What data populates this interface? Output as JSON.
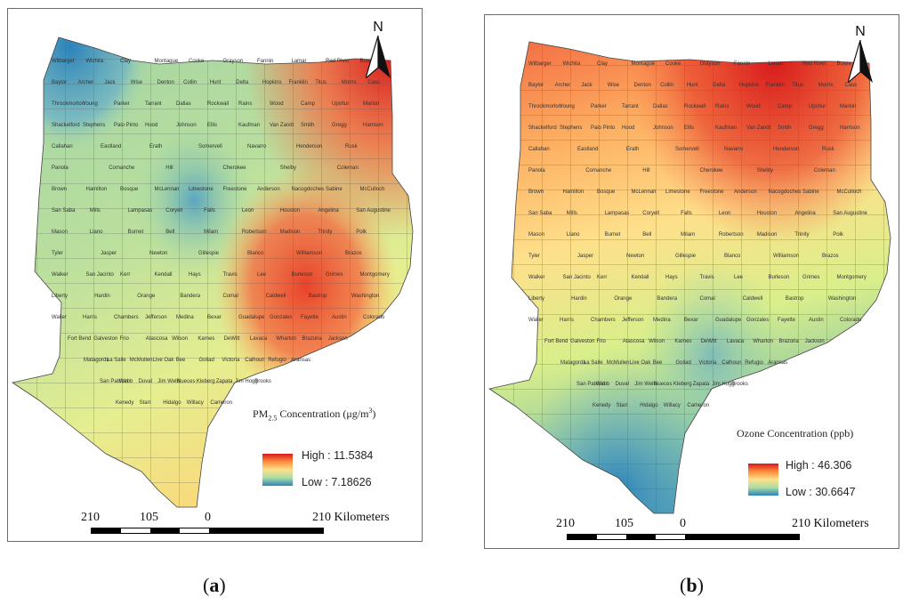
{
  "panels": [
    {
      "id": "a",
      "caption_letter": "a",
      "legend_title_main": "PM",
      "legend_title_sub": "2.5",
      "legend_title_rest": " Concentration (μg/m",
      "legend_title_sup": "3",
      "legend_title_end": ")",
      "legend_high": "High : 11.5384",
      "legend_low": "Low : 7.18626",
      "north_label": "N",
      "scale": {
        "left": "210",
        "mid": "105",
        "zero": "0",
        "right": "210 Kilometers"
      }
    },
    {
      "id": "b",
      "caption_letter": "b",
      "legend_title": "Ozone Concentration (ppb)",
      "legend_high": "High : 46.306",
      "legend_low": "Low : 30.6647",
      "north_label": "N",
      "scale": {
        "left": "210",
        "mid": "105",
        "zero": "0",
        "right": "210 Kilometers"
      }
    }
  ],
  "colors": {
    "high": "#d7191c",
    "mid": "#fee08b",
    "low": "#2b83ba"
  },
  "counties": [
    "Wilbarger",
    "Wichita",
    "Clay",
    "Montague",
    "Cooke",
    "Grayson",
    "Fannin",
    "Lamar",
    "Red River",
    "Bowie",
    "Baylor",
    "Archer",
    "Jack",
    "Wise",
    "Denton",
    "Collin",
    "Hunt",
    "Delta",
    "Hopkins",
    "Franklin",
    "Titus",
    "Morris",
    "Cass",
    "Throckmorton",
    "Young",
    "Parker",
    "Tarrant",
    "Dallas",
    "Rockwall",
    "Rains",
    "Wood",
    "Camp",
    "Upshur",
    "Marion",
    "Shackelford",
    "Stephens",
    "Palo Pinto",
    "Hood",
    "Johnson",
    "Ellis",
    "Kaufman",
    "Van Zandt",
    "Smith",
    "Gregg",
    "Harrison",
    "Callahan",
    "Eastland",
    "Erath",
    "Somervell",
    "Navarro",
    "Henderson",
    "Rusk",
    "Panola",
    "Comanche",
    "Hill",
    "Cherokee",
    "Shelby",
    "Coleman",
    "Brown",
    "Hamilton",
    "Bosque",
    "McLennan",
    "Limestone",
    "Freestone",
    "Anderson",
    "Nacogdoches",
    "Sabine",
    "McCulloch",
    "San Saba",
    "Mills",
    "Lampasas",
    "Coryell",
    "Falls",
    "Leon",
    "Houston",
    "Angelina",
    "San Augustine",
    "Mason",
    "Llano",
    "Burnet",
    "Bell",
    "Milam",
    "Robertson",
    "Madison",
    "Trinity",
    "Polk",
    "Tyler",
    "Jasper",
    "Newton",
    "Gillespie",
    "Blanco",
    "Williamson",
    "Brazos",
    "Walker",
    "San Jacinto",
    "Kerr",
    "Kendall",
    "Hays",
    "Travis",
    "Lee",
    "Burleson",
    "Grimes",
    "Montgomery",
    "Liberty",
    "Hardin",
    "Orange",
    "Bandera",
    "Comal",
    "Caldwell",
    "Bastrop",
    "Washington",
    "Waller",
    "Harris",
    "Chambers",
    "Jefferson",
    "Medina",
    "Bexar",
    "Guadalupe",
    "Gonzales",
    "Fayette",
    "Austin",
    "Colorado",
    "Fort Bend",
    "Galveston",
    "Frio",
    "Atascosa",
    "Wilson",
    "Karnes",
    "DeWitt",
    "Lavaca",
    "Wharton",
    "Brazoria",
    "Jackson",
    "Matagorda",
    "La Salle",
    "McMullen",
    "Live Oak",
    "Bee",
    "Goliad",
    "Victoria",
    "Calhoun",
    "Refugio",
    "Aransas",
    "San Patricio",
    "Webb",
    "Duval",
    "Jim Wells",
    "Nueces",
    "Kleberg",
    "Zapata",
    "Jim Hogg",
    "Brooks",
    "Kenedy",
    "Starr",
    "Hidalgo",
    "Willacy",
    "Cameron"
  ]
}
